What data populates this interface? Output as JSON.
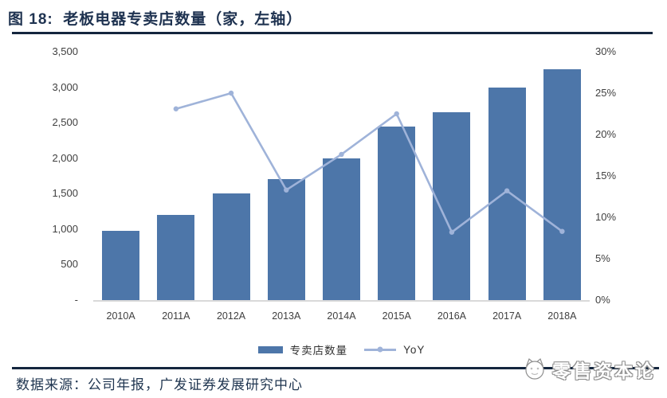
{
  "title": "图 18:  老板电器专卖店数量（家，左轴）",
  "chart_data": {
    "type": "bar",
    "title": "老板电器专卖店数量（家，左轴）",
    "categories": [
      "2010A",
      "2011A",
      "2012A",
      "2013A",
      "2014A",
      "2015A",
      "2016A",
      "2017A",
      "2018A"
    ],
    "series": [
      {
        "name": "专卖店数量",
        "type": "bar",
        "axis": "left",
        "values": [
          975,
          1200,
          1500,
          1700,
          2000,
          2450,
          2650,
          3000,
          3250
        ]
      },
      {
        "name": "YoY",
        "type": "line",
        "axis": "right",
        "values": [
          null,
          23.1,
          25.0,
          13.3,
          17.6,
          22.5,
          8.2,
          13.2,
          8.3
        ]
      }
    ],
    "left_axis": {
      "min": 0,
      "max": 3500,
      "step": 500,
      "tick_labels": [
        "3,500",
        "3,000",
        "2,500",
        "2,000",
        "1,500",
        "1,000",
        "500",
        "-"
      ]
    },
    "right_axis": {
      "min": 0,
      "max": 30,
      "step": 5,
      "tick_labels": [
        "30%",
        "25%",
        "20%",
        "15%",
        "10%",
        "5%",
        "0%"
      ]
    },
    "grid": false,
    "legend_position": "bottom",
    "colors": {
      "bar": "#4D76A9",
      "line": "#9FB3D9"
    }
  },
  "source_note": "数据来源：公司年报，广发证券发展研究中心",
  "watermark": {
    "text": "零售资本论",
    "icon": "mascot-icon"
  },
  "theme": {
    "title_color": "#1E3250",
    "rule_color": "#14263E",
    "axis_text_color": "#3F3F3F"
  }
}
